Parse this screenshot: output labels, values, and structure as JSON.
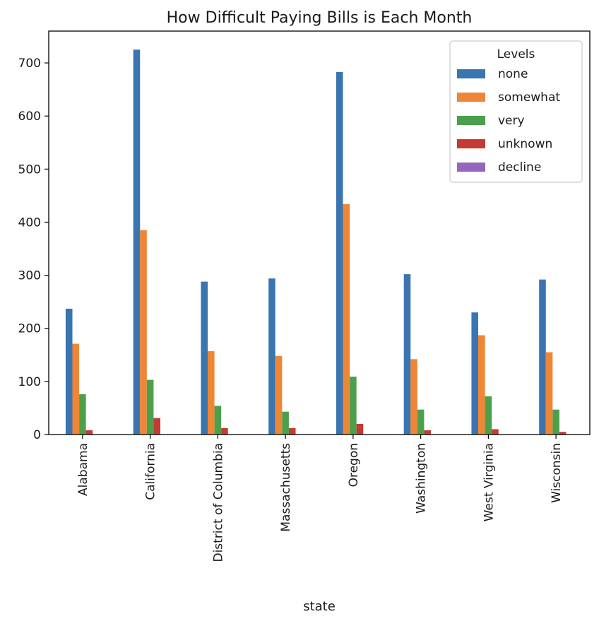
{
  "chart_data": {
    "type": "bar",
    "title": "How Difficult Paying Bills is Each Month",
    "xlabel": "state",
    "ylabel": "",
    "ylim": [
      0,
      760
    ],
    "yticks": [
      0,
      100,
      200,
      300,
      400,
      500,
      600,
      700
    ],
    "categories": [
      "Alabama",
      "California",
      "District of Columbia",
      "Massachusetts",
      "Oregon",
      "Washington",
      "West Virginia",
      "Wisconsin"
    ],
    "series": [
      {
        "name": "none",
        "color": "#3a75b0",
        "values": [
          237,
          725,
          288,
          294,
          683,
          302,
          230,
          292
        ]
      },
      {
        "name": "somewhat",
        "color": "#ef8636",
        "values": [
          171,
          385,
          157,
          148,
          434,
          142,
          187,
          155
        ]
      },
      {
        "name": "very",
        "color": "#4da04b",
        "values": [
          76,
          103,
          54,
          43,
          109,
          47,
          72,
          47
        ]
      },
      {
        "name": "unknown",
        "color": "#c43b33",
        "values": [
          8,
          31,
          12,
          12,
          20,
          8,
          10,
          5
        ]
      },
      {
        "name": "decline",
        "color": "#9467bd",
        "values": [
          0,
          0,
          0,
          0,
          0,
          0,
          0,
          0
        ]
      }
    ],
    "legend": {
      "title": "Levels",
      "placement": "top-right"
    },
    "grid": false
  }
}
